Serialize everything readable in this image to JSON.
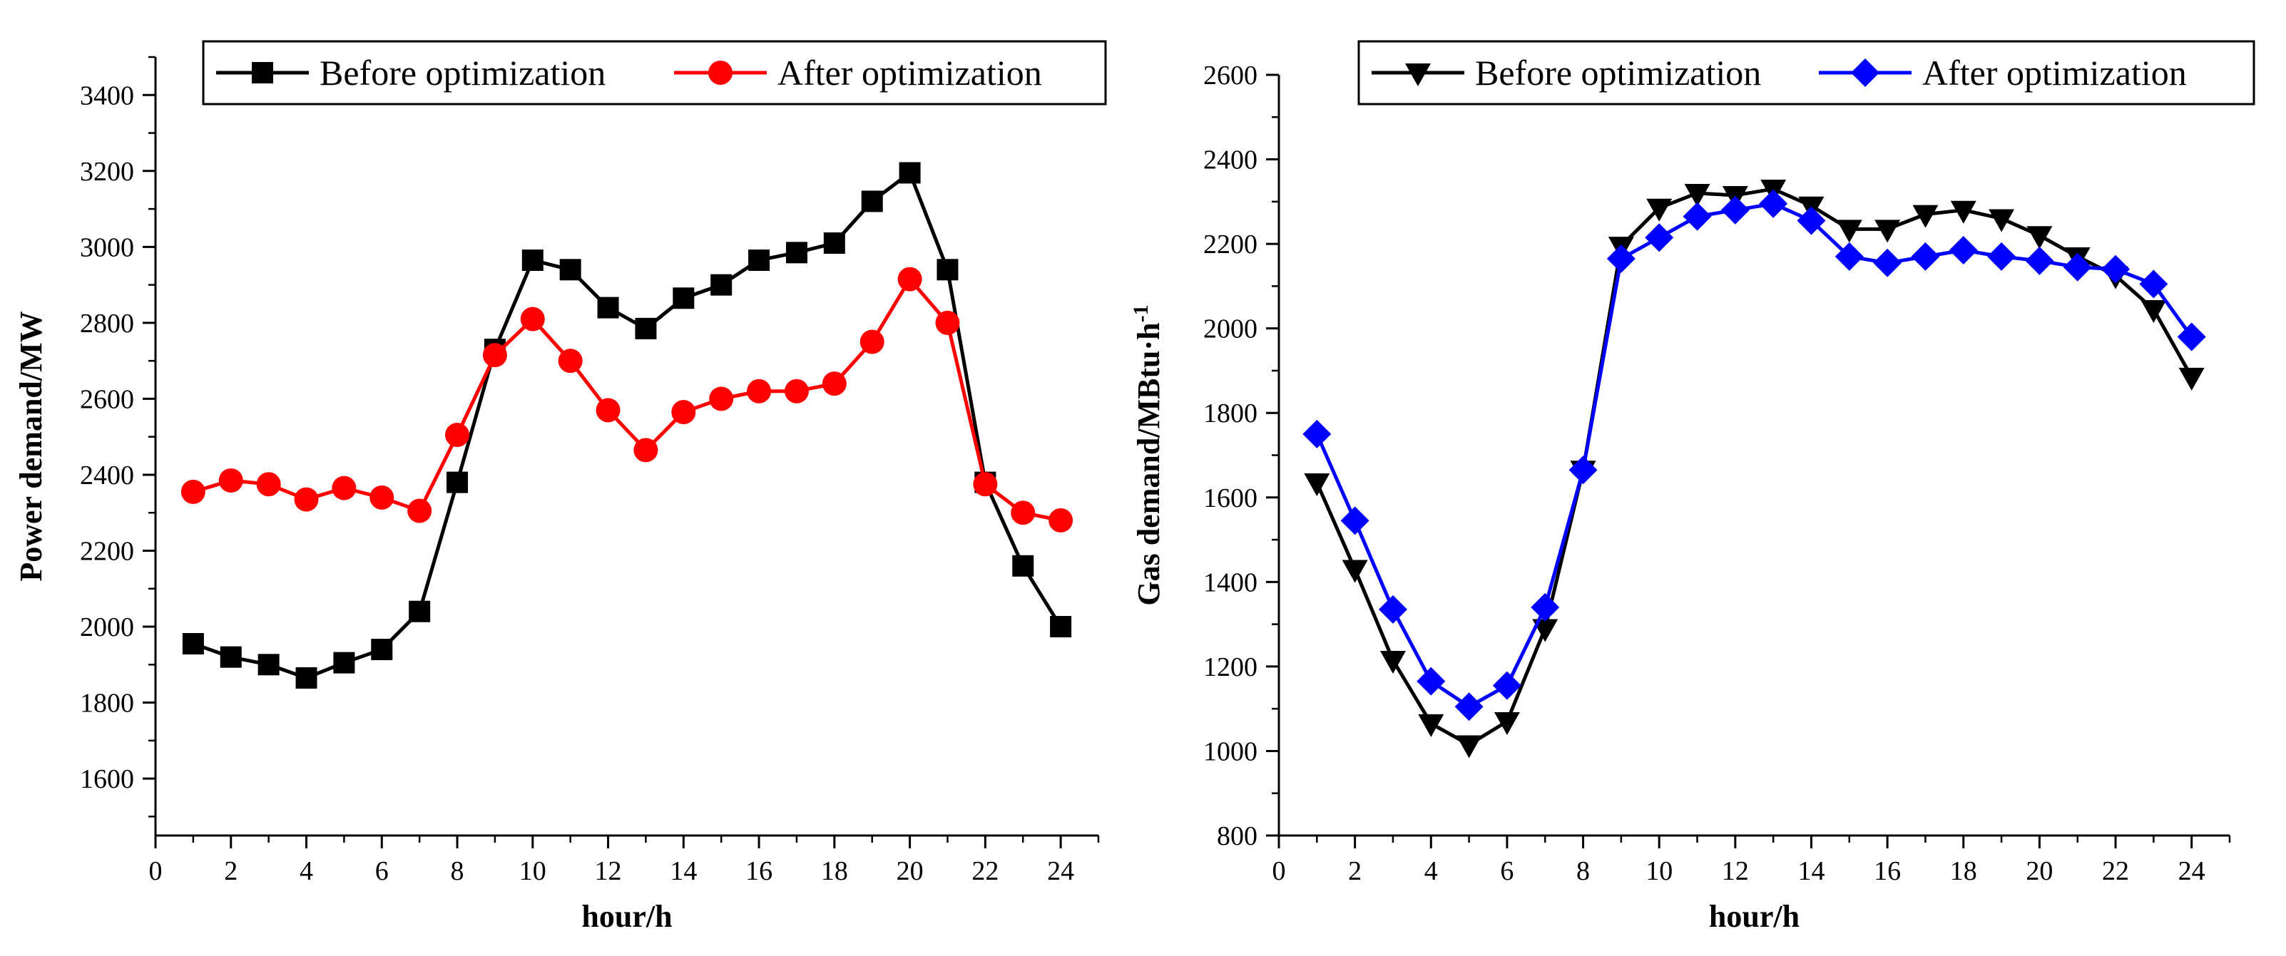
{
  "chart_data": [
    {
      "type": "line",
      "title": "",
      "xlabel": "hour/h",
      "ylabel": "Power demand/MW",
      "xlim": [
        0,
        25
      ],
      "ylim": [
        1450,
        3500
      ],
      "xticks": [
        0,
        2,
        4,
        6,
        8,
        10,
        12,
        14,
        16,
        18,
        20,
        22,
        24
      ],
      "yticks": [
        1600,
        1800,
        2000,
        2200,
        2400,
        2600,
        2800,
        3000,
        3200,
        3400
      ],
      "x": [
        1,
        2,
        3,
        4,
        5,
        6,
        7,
        8,
        9,
        10,
        11,
        12,
        13,
        14,
        15,
        16,
        17,
        18,
        19,
        20,
        21,
        22,
        23,
        24
      ],
      "legend_position": "top",
      "series": [
        {
          "name": "Before optimization",
          "color": "#000000",
          "marker": "square",
          "values": [
            1955,
            1920,
            1900,
            1865,
            1905,
            1940,
            2040,
            2380,
            2730,
            2965,
            2940,
            2840,
            2785,
            2865,
            2900,
            2965,
            2985,
            3010,
            3120,
            3195,
            2940,
            2380,
            2160,
            2000
          ]
        },
        {
          "name": "After optimization",
          "color": "#ff0000",
          "marker": "circle",
          "values": [
            2355,
            2385,
            2375,
            2335,
            2365,
            2340,
            2305,
            2505,
            2715,
            2810,
            2700,
            2570,
            2465,
            2565,
            2600,
            2620,
            2620,
            2640,
            2750,
            2915,
            2800,
            2375,
            2300,
            2280
          ]
        }
      ]
    },
    {
      "type": "line",
      "title": "",
      "xlabel": "hour/h",
      "ylabel_main": "Gas demand/MBtu·h",
      "ylabel_sup": "-1",
      "xlim": [
        0,
        25
      ],
      "ylim": [
        800,
        2600
      ],
      "xticks": [
        0,
        2,
        4,
        6,
        8,
        10,
        12,
        14,
        16,
        18,
        20,
        22,
        24
      ],
      "yticks": [
        800,
        1000,
        1200,
        1400,
        1600,
        1800,
        2000,
        2200,
        2400,
        2600
      ],
      "x": [
        1,
        2,
        3,
        4,
        5,
        6,
        7,
        8,
        9,
        10,
        11,
        12,
        13,
        14,
        15,
        16,
        17,
        18,
        19,
        20,
        21,
        22,
        23,
        24
      ],
      "legend_position": "top",
      "series": [
        {
          "name": "Before optimization",
          "color": "#000000",
          "marker": "triangle-down",
          "values": [
            1635,
            1430,
            1215,
            1065,
            1015,
            1070,
            1290,
            1665,
            2195,
            2285,
            2320,
            2315,
            2330,
            2290,
            2235,
            2235,
            2270,
            2280,
            2260,
            2220,
            2170,
            2125,
            2045,
            1885
          ]
        },
        {
          "name": "After optimization",
          "color": "#0000ff",
          "marker": "diamond",
          "values": [
            1750,
            1545,
            1335,
            1165,
            1105,
            1155,
            1340,
            1665,
            2165,
            2215,
            2265,
            2280,
            2295,
            2255,
            2170,
            2155,
            2170,
            2185,
            2170,
            2160,
            2145,
            2140,
            2105,
            1980
          ]
        }
      ]
    }
  ]
}
